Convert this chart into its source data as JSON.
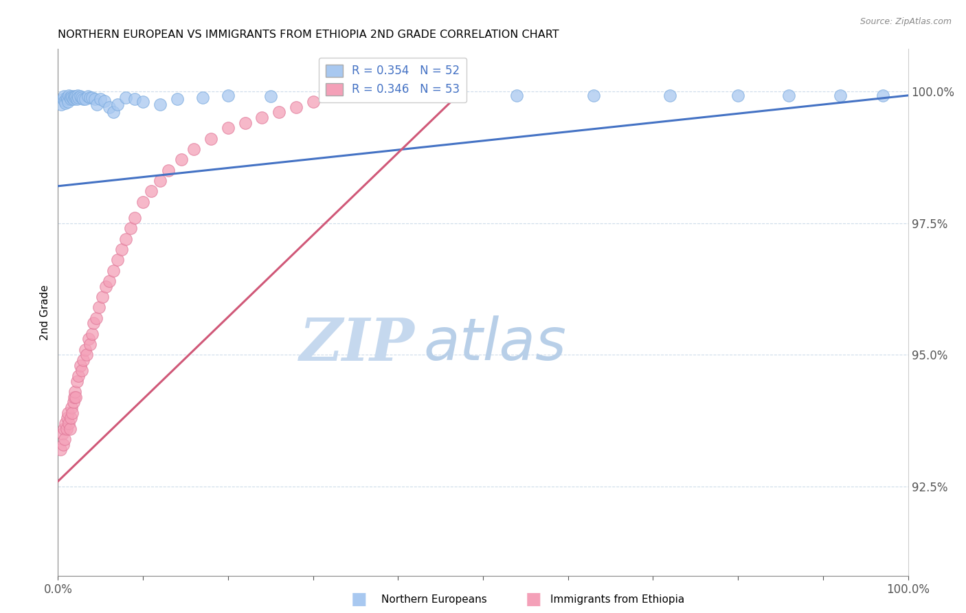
{
  "title": "NORTHERN EUROPEAN VS IMMIGRANTS FROM ETHIOPIA 2ND GRADE CORRELATION CHART",
  "source_text": "Source: ZipAtlas.com",
  "ylabel": "2nd Grade",
  "xlim": [
    0.0,
    1.0
  ],
  "ylim": [
    0.908,
    1.008
  ],
  "ytick_positions": [
    0.925,
    0.95,
    0.975,
    1.0
  ],
  "ytick_labels": [
    "92.5%",
    "95.0%",
    "97.5%",
    "100.0%"
  ],
  "blue_color": "#a8c8f0",
  "pink_color": "#f4a0b8",
  "blue_edge_color": "#7aaade",
  "pink_edge_color": "#e07898",
  "blue_line_color": "#4472c4",
  "pink_line_color": "#d05878",
  "watermark_zip": "ZIP",
  "watermark_atlas": "atlas",
  "watermark_color_zip": "#c5d8ee",
  "watermark_color_atlas": "#b8cfe8",
  "legend_r1": "R = 0.354   N = 52",
  "legend_r2": "R = 0.346   N = 53",
  "blue_scatter_x": [
    0.004,
    0.006,
    0.007,
    0.008,
    0.009,
    0.01,
    0.011,
    0.012,
    0.013,
    0.014,
    0.015,
    0.016,
    0.017,
    0.018,
    0.019,
    0.02,
    0.021,
    0.022,
    0.023,
    0.024,
    0.026,
    0.028,
    0.03,
    0.032,
    0.035,
    0.038,
    0.04,
    0.043,
    0.046,
    0.05,
    0.055,
    0.06,
    0.065,
    0.07,
    0.08,
    0.09,
    0.1,
    0.12,
    0.14,
    0.17,
    0.2,
    0.25,
    0.32,
    0.39,
    0.46,
    0.54,
    0.63,
    0.72,
    0.8,
    0.86,
    0.92,
    0.97
  ],
  "blue_scatter_y": [
    0.9975,
    0.9985,
    0.999,
    0.9982,
    0.9978,
    0.9988,
    0.9985,
    0.998,
    0.9992,
    0.9988,
    0.9985,
    0.999,
    0.9988,
    0.9985,
    0.999,
    0.9988,
    0.999,
    0.9985,
    0.9992,
    0.9988,
    0.999,
    0.9988,
    0.9985,
    0.9985,
    0.999,
    0.9988,
    0.9988,
    0.9985,
    0.9975,
    0.9985,
    0.9982,
    0.997,
    0.996,
    0.9975,
    0.9988,
    0.9985,
    0.998,
    0.9975,
    0.9985,
    0.9988,
    0.9992,
    0.999,
    0.999,
    0.999,
    0.9992,
    0.9992,
    0.9992,
    0.9992,
    0.9992,
    0.9992,
    0.9992,
    0.9992
  ],
  "pink_scatter_x": [
    0.003,
    0.005,
    0.006,
    0.007,
    0.008,
    0.009,
    0.01,
    0.011,
    0.012,
    0.013,
    0.014,
    0.015,
    0.016,
    0.017,
    0.018,
    0.019,
    0.02,
    0.021,
    0.022,
    0.024,
    0.026,
    0.028,
    0.03,
    0.032,
    0.034,
    0.036,
    0.038,
    0.04,
    0.042,
    0.045,
    0.048,
    0.052,
    0.056,
    0.06,
    0.065,
    0.07,
    0.075,
    0.08,
    0.085,
    0.09,
    0.1,
    0.11,
    0.12,
    0.13,
    0.145,
    0.16,
    0.18,
    0.2,
    0.22,
    0.24,
    0.26,
    0.28,
    0.3
  ],
  "pink_scatter_y": [
    0.932,
    0.935,
    0.933,
    0.936,
    0.934,
    0.937,
    0.936,
    0.938,
    0.939,
    0.937,
    0.936,
    0.938,
    0.94,
    0.939,
    0.941,
    0.942,
    0.943,
    0.942,
    0.945,
    0.946,
    0.948,
    0.947,
    0.949,
    0.951,
    0.95,
    0.953,
    0.952,
    0.954,
    0.956,
    0.957,
    0.959,
    0.961,
    0.963,
    0.964,
    0.966,
    0.968,
    0.97,
    0.972,
    0.974,
    0.976,
    0.979,
    0.981,
    0.983,
    0.985,
    0.987,
    0.989,
    0.991,
    0.993,
    0.994,
    0.995,
    0.996,
    0.997,
    0.998
  ],
  "blue_trend_x": [
    0.0,
    1.0
  ],
  "blue_trend_y": [
    0.982,
    0.9992
  ],
  "pink_trend_x": [
    0.0,
    0.47
  ],
  "pink_trend_y": [
    0.926,
    0.9992
  ]
}
